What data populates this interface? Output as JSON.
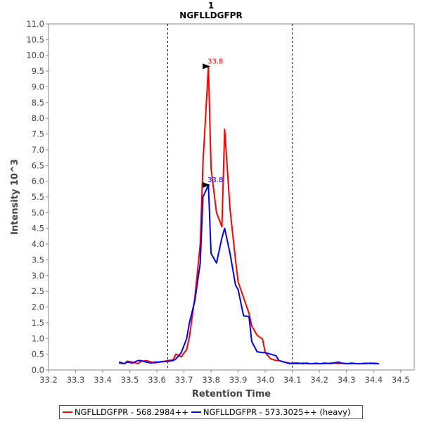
{
  "chart_data": {
    "type": "line",
    "title": "1",
    "subtitle": "NGFLLDGFPR",
    "xlabel": "Retention Time",
    "ylabel": "Intensity 10^3",
    "xlim": [
      33.2,
      34.55
    ],
    "ylim": [
      0,
      11
    ],
    "x_ticks": [
      "33.2",
      "33.3",
      "33.4",
      "33.5",
      "33.6",
      "33.7",
      "33.8",
      "33.9",
      "34.0",
      "34.1",
      "34.2",
      "34.3",
      "34.4",
      "34.5"
    ],
    "y_ticks": [
      "0.0",
      "0.5",
      "1.0",
      "1.5",
      "2.0",
      "2.5",
      "3.0",
      "3.5",
      "4.0",
      "4.5",
      "5.0",
      "5.5",
      "6.0",
      "6.5",
      "7.0",
      "7.5",
      "8.0",
      "8.5",
      "9.0",
      "9.5",
      "10.0",
      "10.5",
      "11.0"
    ],
    "integration_boundaries": [
      33.64,
      34.1
    ],
    "series": [
      {
        "name": "NGFLLDGFPR - 568.2984++",
        "color": "#ff0000",
        "peak_label": "33.8",
        "peak": [
          33.8,
          9.65
        ],
        "x": [
          33.46,
          33.48,
          33.49,
          33.51,
          33.53,
          33.54,
          33.56,
          33.58,
          33.59,
          33.61,
          33.62,
          33.64,
          33.66,
          33.67,
          33.69,
          33.71,
          33.72,
          33.74,
          33.76,
          33.77,
          33.79,
          33.8,
          33.82,
          33.84,
          33.85,
          33.87,
          33.89,
          33.9,
          33.92,
          33.94,
          33.95,
          33.97,
          33.99,
          34.0,
          34.02,
          34.04,
          34.05,
          34.07,
          34.09,
          34.1,
          34.12,
          34.14,
          34.15,
          34.17,
          34.19,
          34.2,
          34.22,
          34.24,
          34.25,
          34.27,
          34.29,
          34.3,
          34.32,
          34.34,
          34.35,
          34.37,
          34.39,
          34.4,
          34.42
        ],
        "y": [
          0.22,
          0.2,
          0.28,
          0.25,
          0.2,
          0.27,
          0.3,
          0.25,
          0.22,
          0.25,
          0.26,
          0.3,
          0.32,
          0.5,
          0.42,
          0.65,
          1.05,
          2.3,
          4.0,
          6.6,
          9.65,
          6.4,
          5.0,
          4.55,
          7.65,
          5.1,
          3.5,
          2.8,
          2.3,
          1.8,
          1.4,
          1.1,
          0.98,
          0.55,
          0.35,
          0.3,
          0.3,
          0.25,
          0.22,
          0.2,
          0.2,
          0.22,
          0.2,
          0.2,
          0.22,
          0.2,
          0.2,
          0.22,
          0.22,
          0.2,
          0.22,
          0.2,
          0.2,
          0.2,
          0.2,
          0.22,
          0.2,
          0.22,
          0.2
        ]
      },
      {
        "name": "NGFLLDGFPR - 573.3025++ (heavy)",
        "color": "#0000ff",
        "peak_label": "33.8",
        "peak": [
          33.8,
          5.88
        ],
        "x": [
          33.46,
          33.48,
          33.49,
          33.51,
          33.53,
          33.54,
          33.56,
          33.58,
          33.59,
          33.61,
          33.62,
          33.64,
          33.66,
          33.67,
          33.69,
          33.71,
          33.72,
          33.74,
          33.76,
          33.77,
          33.79,
          33.8,
          33.82,
          33.84,
          33.85,
          33.87,
          33.89,
          33.9,
          33.92,
          33.94,
          33.95,
          33.97,
          33.99,
          34.0,
          34.02,
          34.04,
          34.05,
          34.07,
          34.09,
          34.1,
          34.12,
          34.14,
          34.15,
          34.17,
          34.19,
          34.2,
          34.22,
          34.24,
          34.25,
          34.27,
          34.29,
          34.3,
          34.32,
          34.34,
          34.35,
          34.37,
          34.39,
          34.4,
          34.42
        ],
        "y": [
          0.25,
          0.2,
          0.25,
          0.22,
          0.3,
          0.3,
          0.25,
          0.22,
          0.25,
          0.25,
          0.27,
          0.27,
          0.3,
          0.35,
          0.55,
          1.0,
          1.5,
          2.2,
          3.4,
          5.5,
          5.88,
          3.7,
          3.4,
          4.2,
          4.5,
          3.7,
          2.7,
          2.55,
          1.72,
          1.7,
          0.9,
          0.58,
          0.55,
          0.55,
          0.5,
          0.45,
          0.3,
          0.25,
          0.2,
          0.22,
          0.22,
          0.2,
          0.22,
          0.2,
          0.2,
          0.2,
          0.22,
          0.2,
          0.22,
          0.25,
          0.2,
          0.2,
          0.22,
          0.2,
          0.2,
          0.2,
          0.22,
          0.2,
          0.2
        ]
      }
    ],
    "legend_position": "bottom"
  }
}
